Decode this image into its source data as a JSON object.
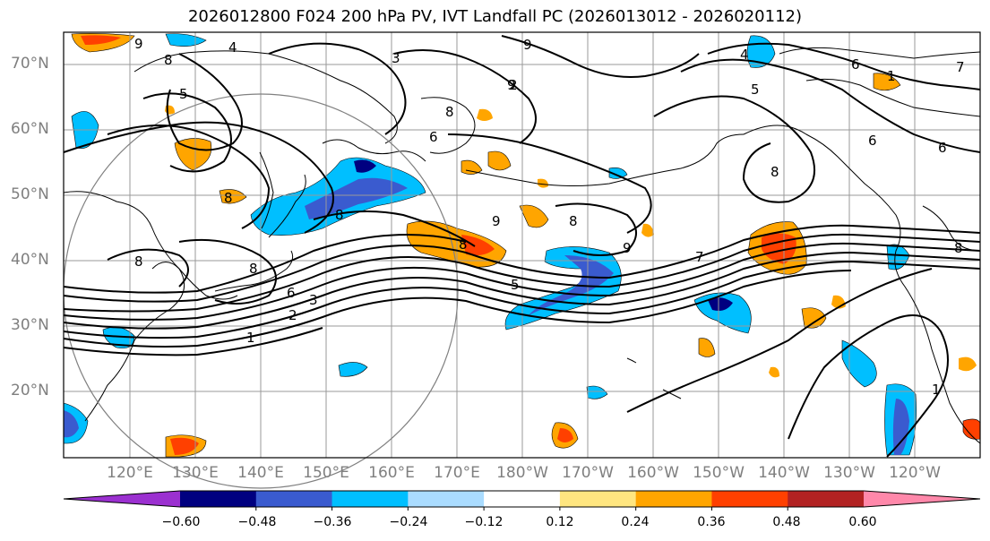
{
  "title": "2026012800 F024 200 hPa PV, IVT Landfall PC (2026013012 - 2026020112)",
  "lat_labels": [
    "70°N",
    "60°N",
    "50°N",
    "40°N",
    "30°N",
    "20°N"
  ],
  "lon_labels": [
    "120°E",
    "130°E",
    "140°E",
    "150°E",
    "160°E",
    "170°E",
    "180°W",
    "170°W",
    "160°W",
    "150°W",
    "140°W",
    "130°W",
    "120°W"
  ],
  "colorbar": {
    "colors": [
      "#9b30d0",
      "#000080",
      "#3a5bcf",
      "#00bfff",
      "#aadcff",
      "#ffffff",
      "#ffe680",
      "#ffa500",
      "#ff4000",
      "#b22222",
      "#ff88aa"
    ],
    "tick_labels": [
      "−0.60",
      "−0.48",
      "−0.36",
      "−0.24",
      "−0.12",
      "0.12",
      "0.24",
      "0.36",
      "0.48",
      "0.60"
    ]
  },
  "contour_labels": [
    "9",
    "8",
    "4",
    "3",
    "5",
    "8",
    "8",
    "9",
    "6",
    "9",
    "5",
    "6",
    "6",
    "7",
    "4",
    "8",
    "9",
    "8",
    "8",
    "8",
    "8",
    "9",
    "8",
    "7",
    "5",
    "3",
    "2",
    "1",
    "8",
    "6",
    "1",
    "6",
    "2",
    "1"
  ],
  "colors": {
    "contour": "#000000",
    "grid": "#999999",
    "coast": "#000000",
    "circle": "#808080"
  }
}
